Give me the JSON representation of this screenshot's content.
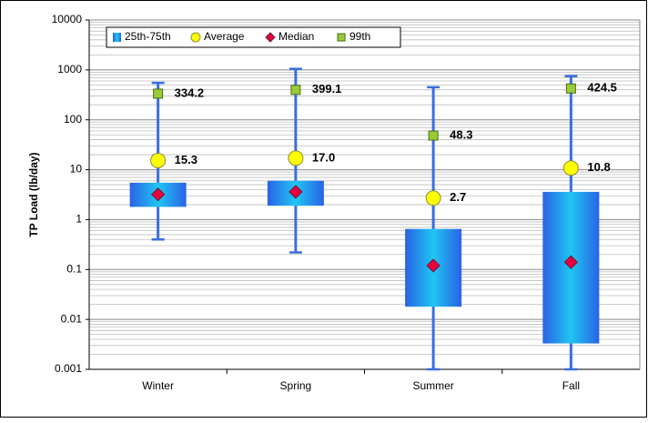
{
  "chart_data": {
    "type": "box",
    "y_label": "TP Load (lb/day)",
    "categories": [
      "Winter",
      "Spring",
      "Summer",
      "Fall"
    ],
    "log_y": true,
    "ylim": [
      0.001,
      10000
    ],
    "yticks": [
      0.001,
      0.01,
      0.1,
      1,
      10,
      100,
      1000,
      10000
    ],
    "grid": true,
    "minor_grid": true,
    "legend": "top-left",
    "box": {
      "name": "25th-75th",
      "color": "#1fa0f0",
      "q1": [
        1.8,
        1.9,
        0.018,
        0.0033
      ],
      "q3": [
        5.5,
        6,
        0.65,
        3.6
      ],
      "whisker_low": [
        0.4,
        0.22,
        0.001,
        0.001
      ],
      "whisker_high": [
        550,
        1050,
        450,
        750
      ],
      "whisker_color": "#3a6fe0"
    },
    "series": [
      {
        "name": "Average",
        "color": "#ffff00",
        "marker": "circle",
        "values": [
          15.3,
          17,
          2.7,
          10.8
        ],
        "value_labels": [
          "15.3",
          "17.0",
          "2.7",
          "10.8"
        ]
      },
      {
        "name": "Median",
        "color": "#e8003c",
        "marker": "diamond",
        "values": [
          3.2,
          3.6,
          0.12,
          0.14
        ]
      },
      {
        "name": "99th",
        "color": "#99cc33",
        "marker": "square",
        "values": [
          334.2,
          399.1,
          48.3,
          424.5
        ],
        "value_labels": [
          "334.2",
          "399.1",
          "48.3",
          "424.5"
        ]
      }
    ]
  }
}
